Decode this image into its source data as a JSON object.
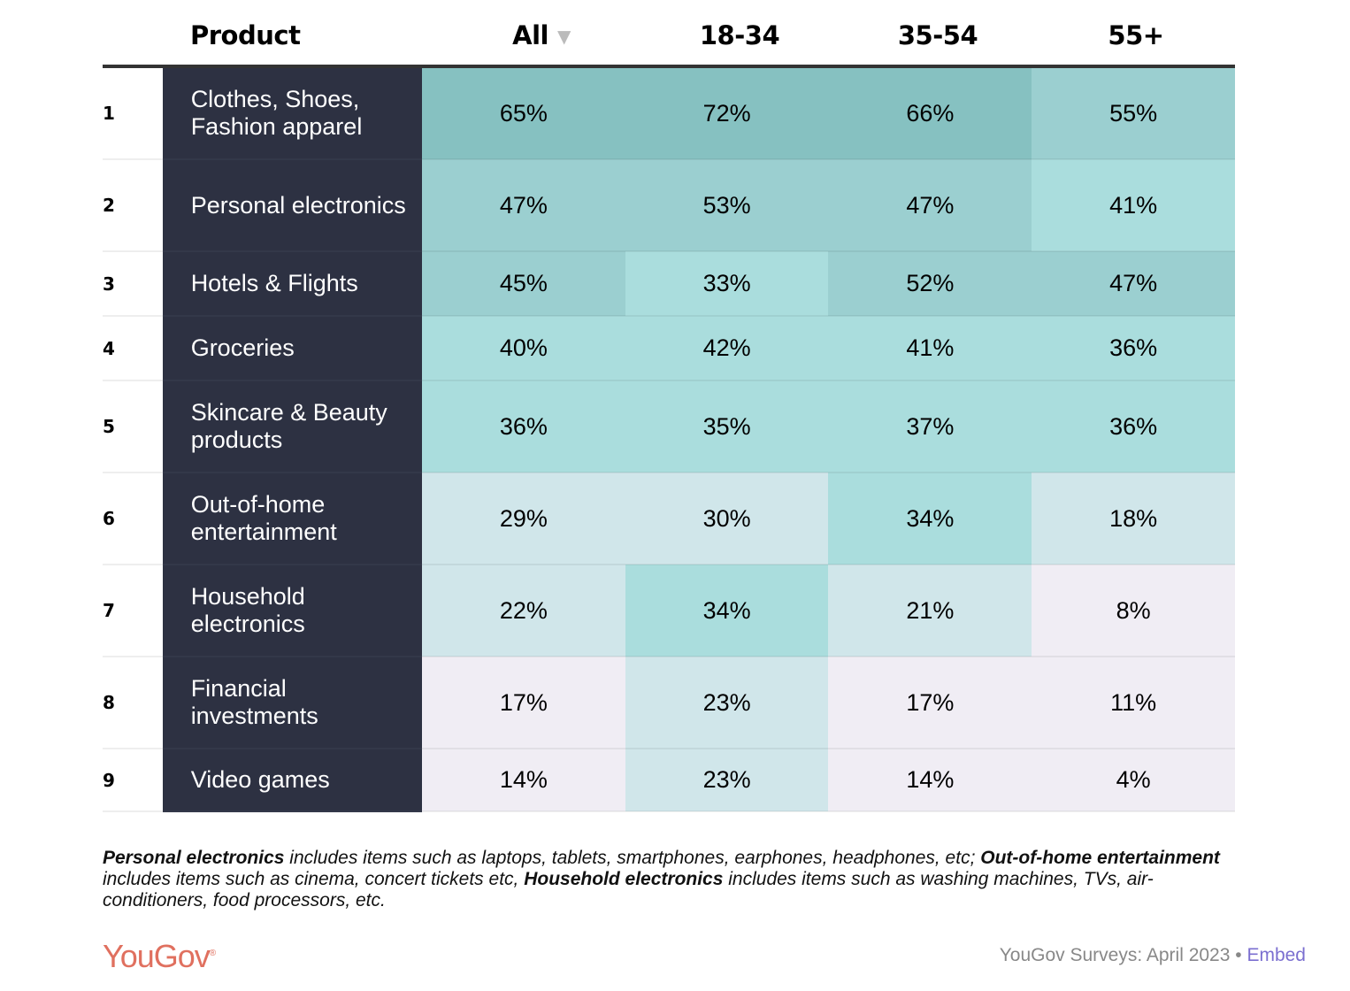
{
  "chart_data": {
    "type": "table",
    "columns": [
      "Product",
      "All",
      "18-34",
      "35-54",
      "55+"
    ],
    "sort_column": "All",
    "sort_direction": "descending",
    "rows": [
      {
        "rank": "1",
        "product": "Clothes, Shoes, Fashion apparel",
        "values": [
          "65%",
          "72%",
          "66%",
          "55%"
        ]
      },
      {
        "rank": "2",
        "product": "Personal electronics",
        "values": [
          "47%",
          "53%",
          "47%",
          "41%"
        ]
      },
      {
        "rank": "3",
        "product": "Hotels & Flights",
        "values": [
          "45%",
          "33%",
          "52%",
          "47%"
        ]
      },
      {
        "rank": "4",
        "product": "Groceries",
        "values": [
          "40%",
          "42%",
          "41%",
          "36%"
        ]
      },
      {
        "rank": "5",
        "product": "Skincare & Beauty products",
        "values": [
          "36%",
          "35%",
          "37%",
          "36%"
        ]
      },
      {
        "rank": "6",
        "product": "Out-of-home entertainment",
        "values": [
          "29%",
          "30%",
          "34%",
          "18%"
        ]
      },
      {
        "rank": "7",
        "product": "Household electronics",
        "values": [
          "22%",
          "34%",
          "21%",
          "8%"
        ]
      },
      {
        "rank": "8",
        "product": "Financial investments",
        "values": [
          "17%",
          "23%",
          "17%",
          "11%"
        ]
      },
      {
        "rank": "9",
        "product": "Video games",
        "values": [
          "14%",
          "23%",
          "14%",
          "4%"
        ]
      }
    ],
    "color_scale": [
      "#86c1c1",
      "#9bcfd0",
      "#aadddd",
      "#d0e6ea",
      "#f0edf4"
    ],
    "product_column_color": "#2d3142"
  },
  "footnote": {
    "parts": [
      {
        "bold": true,
        "text": "Personal electronics"
      },
      {
        "bold": false,
        "text": " includes items such as laptops, tablets, smartphones, earphones, headphones, etc; "
      },
      {
        "bold": true,
        "text": "Out-of-home entertainment"
      },
      {
        "bold": false,
        "text": " includes items such as cinema, concert tickets etc, "
      },
      {
        "bold": true,
        "text": "Household electronics"
      },
      {
        "bold": false,
        "text": " includes items such as washing machines, TVs, air-conditioners, food processors, etc."
      }
    ]
  },
  "footer": {
    "logo": "YouGov",
    "source": "YouGov Surveys: April 2023 • ",
    "embed_label": "Embed",
    "brand_color": "#e0705f",
    "link_color": "#7b6fd0"
  }
}
